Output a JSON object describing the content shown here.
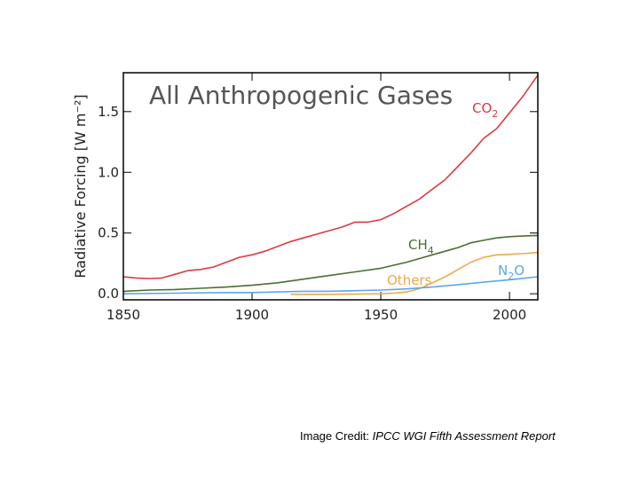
{
  "chart_data": {
    "type": "line",
    "title": "All Anthropogenic Gases",
    "ylabel": "Radiative Forcing [W m⁻²]",
    "xlabel": "",
    "xlim": [
      1850,
      2011
    ],
    "ylim": [
      -0.05,
      1.82
    ],
    "xticks": [
      1850,
      1900,
      1950,
      2000
    ],
    "xtick_labels": [
      "1850",
      "1900",
      "1950",
      "2000"
    ],
    "yticks": [
      0.0,
      0.5,
      1.0,
      1.5
    ],
    "ytick_labels": [
      "0.0",
      "0.5",
      "1.0",
      "1.5"
    ],
    "grid": false,
    "legend": "inline labels",
    "series": [
      {
        "name": "CO2",
        "label_main": "CO",
        "label_sub": "2",
        "color": "#e0393e",
        "x": [
          1850,
          1855,
          1860,
          1865,
          1870,
          1875,
          1880,
          1885,
          1890,
          1895,
          1900,
          1905,
          1910,
          1915,
          1920,
          1925,
          1930,
          1935,
          1940,
          1945,
          1950,
          1955,
          1960,
          1965,
          1970,
          1975,
          1980,
          1985,
          1990,
          1995,
          2000,
          2005,
          2011
        ],
        "y": [
          0.14,
          0.13,
          0.125,
          0.13,
          0.16,
          0.19,
          0.2,
          0.22,
          0.26,
          0.3,
          0.32,
          0.35,
          0.39,
          0.43,
          0.46,
          0.49,
          0.52,
          0.55,
          0.59,
          0.59,
          0.61,
          0.66,
          0.72,
          0.78,
          0.86,
          0.94,
          1.05,
          1.16,
          1.28,
          1.36,
          1.49,
          1.62,
          1.8
        ]
      },
      {
        "name": "CH4",
        "label_main": "CH",
        "label_sub": "4",
        "color": "#4a6e32",
        "x": [
          1850,
          1860,
          1870,
          1880,
          1890,
          1900,
          1910,
          1920,
          1930,
          1940,
          1950,
          1955,
          1960,
          1965,
          1970,
          1975,
          1980,
          1985,
          1990,
          1995,
          2000,
          2005,
          2011
        ],
        "y": [
          0.02,
          0.03,
          0.035,
          0.045,
          0.055,
          0.07,
          0.09,
          0.12,
          0.15,
          0.18,
          0.21,
          0.235,
          0.26,
          0.29,
          0.32,
          0.35,
          0.38,
          0.42,
          0.44,
          0.46,
          0.47,
          0.475,
          0.48
        ]
      },
      {
        "name": "Others",
        "label_main": "Others",
        "label_sub": "",
        "color": "#f0a848",
        "x": [
          1915,
          1930,
          1940,
          1950,
          1955,
          1960,
          1963,
          1966,
          1970,
          1975,
          1980,
          1985,
          1990,
          1995,
          2000,
          2005,
          2011
        ],
        "y": [
          -0.005,
          -0.005,
          -0.003,
          0.0,
          0.005,
          0.015,
          0.03,
          0.05,
          0.09,
          0.14,
          0.2,
          0.26,
          0.3,
          0.32,
          0.325,
          0.33,
          0.34
        ]
      },
      {
        "name": "N2O",
        "label_main": "N",
        "label_sub": "2",
        "label_tail": "O",
        "color": "#5ba7e8",
        "x": [
          1850,
          1870,
          1890,
          1900,
          1910,
          1920,
          1930,
          1940,
          1950,
          1960,
          1970,
          1980,
          1990,
          2000,
          2011
        ],
        "y": [
          0.0,
          0.005,
          0.01,
          0.01,
          0.015,
          0.02,
          0.02,
          0.025,
          0.03,
          0.04,
          0.055,
          0.075,
          0.095,
          0.115,
          0.14
        ]
      }
    ]
  },
  "credit": {
    "prefix": "Image Credit: ",
    "source": "IPCC WGI Fifth Assessment Report"
  }
}
